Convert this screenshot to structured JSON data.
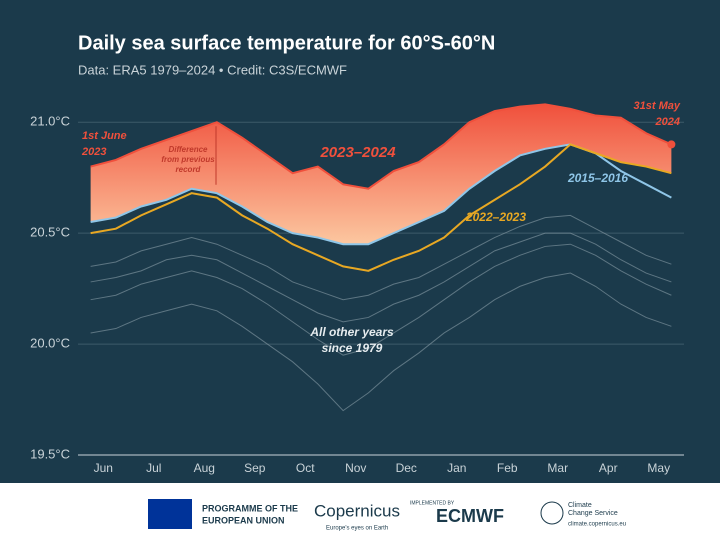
{
  "chart_data": {
    "type": "line",
    "title": "Daily sea surface temperature for 60°S-60°N",
    "subtitle": "Data: ERA5 1979–2024 • Credit: C3S/ECMWF",
    "categories": [
      "Jun",
      null,
      "Jul",
      null,
      "Aug",
      null,
      "Sep",
      null,
      "Oct",
      null,
      "Nov",
      null,
      "Dec",
      null,
      "Jan",
      null,
      "Feb",
      null,
      "Mar",
      null,
      "Apr",
      null,
      "May",
      null
    ],
    "series": [
      {
        "name": "2023–2024",
        "color": "#f0503c",
        "values": [
          20.8,
          20.83,
          20.88,
          20.92,
          20.96,
          21.0,
          20.93,
          20.85,
          20.77,
          20.8,
          20.72,
          20.7,
          20.78,
          20.82,
          20.9,
          21.0,
          21.05,
          21.07,
          21.08,
          21.06,
          21.03,
          21.02,
          20.95,
          20.9
        ]
      },
      {
        "name": "2022–2023",
        "color": "#e8a823",
        "values": [
          20.5,
          20.52,
          20.58,
          20.63,
          20.68,
          20.66,
          20.58,
          20.52,
          20.45,
          20.4,
          20.35,
          20.33,
          20.38,
          20.42,
          20.48,
          20.58,
          20.65,
          20.72,
          20.8,
          20.9,
          20.86,
          20.82,
          20.8,
          20.77
        ]
      },
      {
        "name": "2015–2016",
        "color": "#8fc6e8",
        "values": [
          20.55,
          20.57,
          20.62,
          20.65,
          20.7,
          20.68,
          20.62,
          20.55,
          20.5,
          20.48,
          20.45,
          20.45,
          20.5,
          20.55,
          20.6,
          20.7,
          20.78,
          20.85,
          20.88,
          20.9,
          20.86,
          20.78,
          20.72,
          20.66
        ]
      },
      {
        "color": "#8b9ea8",
        "values": [
          20.35,
          20.37,
          20.42,
          20.45,
          20.48,
          20.45,
          20.4,
          20.35,
          20.28,
          20.24,
          20.2,
          20.22,
          20.27,
          20.3,
          20.36,
          20.42,
          20.48,
          20.53,
          20.57,
          20.58,
          20.52,
          20.46,
          20.4,
          20.36
        ]
      },
      {
        "color": "#8b9ea8",
        "values": [
          20.2,
          20.22,
          20.27,
          20.3,
          20.33,
          20.3,
          20.25,
          20.18,
          20.1,
          20.02,
          19.95,
          19.98,
          20.05,
          20.12,
          20.2,
          20.28,
          20.35,
          20.4,
          20.44,
          20.45,
          20.4,
          20.33,
          20.27,
          20.22
        ]
      },
      {
        "color": "#8b9ea8",
        "values": [
          20.05,
          20.07,
          20.12,
          20.15,
          20.18,
          20.15,
          20.08,
          20.0,
          19.92,
          19.82,
          19.7,
          19.78,
          19.88,
          19.96,
          20.05,
          20.12,
          20.2,
          20.26,
          20.3,
          20.32,
          20.26,
          20.18,
          20.12,
          20.08
        ]
      },
      {
        "color": "#8b9ea8",
        "values": [
          20.28,
          20.3,
          20.33,
          20.38,
          20.4,
          20.38,
          20.32,
          20.26,
          20.2,
          20.14,
          20.1,
          20.12,
          20.18,
          20.22,
          20.28,
          20.35,
          20.42,
          20.46,
          20.5,
          20.5,
          20.45,
          20.38,
          20.32,
          20.28
        ]
      }
    ],
    "ylim": [
      19.5,
      21.1
    ],
    "yticks": [
      {
        "value": 19.5,
        "label": "19.5°C"
      },
      {
        "value": 20.0,
        "label": "20.0°C"
      },
      {
        "value": 20.5,
        "label": "20.5°C"
      },
      {
        "value": 21.0,
        "label": "21.0°C"
      }
    ],
    "grid": true,
    "annotations": {
      "start": [
        "1st June",
        "2023"
      ],
      "end": [
        "31st May",
        "2024"
      ],
      "difference": [
        "Difference",
        "from previous",
        "record"
      ],
      "others": [
        "All other years",
        "since 1979"
      ]
    }
  },
  "footer": {
    "eu": [
      "PROGRAMME OF THE",
      "EUROPEAN UNION"
    ],
    "copernicus": "Copernicus",
    "copernicus_tag": "Europe's eyes on Earth",
    "implemented": "IMPLEMENTED BY",
    "ecmwf": "ECMWF",
    "c3s": [
      "Climate",
      "Change Service"
    ],
    "c3s_url": "climate.copernicus.eu"
  }
}
